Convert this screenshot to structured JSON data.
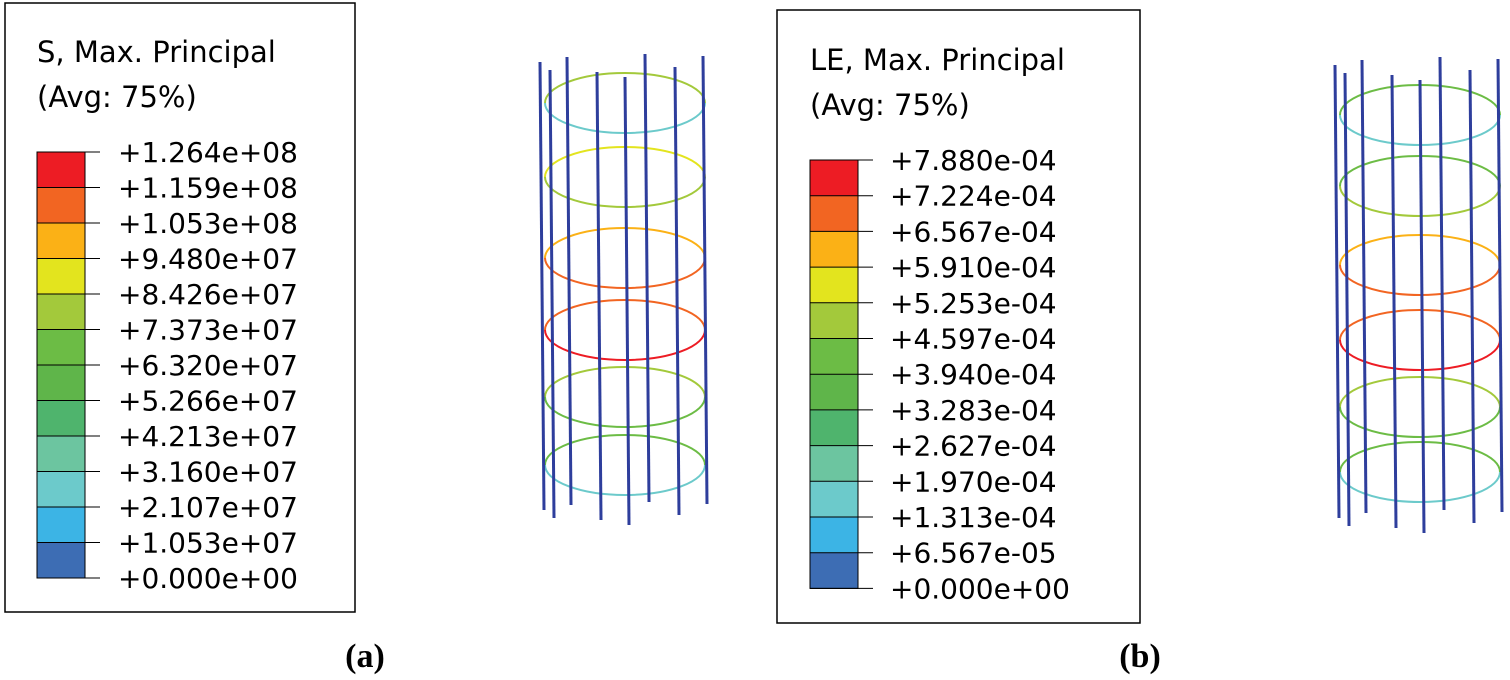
{
  "panels": [
    {
      "legend": {
        "title": "S, Max. Principal",
        "subtitle": "(Avg: 75%)",
        "labels": [
          "+1.264e+08",
          "+1.159e+08",
          "+1.053e+08",
          "+9.480e+07",
          "+8.426e+07",
          "+7.373e+07",
          "+6.320e+07",
          "+5.266e+07",
          "+4.213e+07",
          "+3.160e+07",
          "+2.107e+07",
          "+1.053e+07",
          "+0.000e+00"
        ],
        "band_colors": [
          "#ed1c24",
          "#f26522",
          "#fbb116",
          "#e3e41e",
          "#a3c93b",
          "#6cbc45",
          "#5fb54a",
          "#4fb46d",
          "#6cc5a0",
          "#6ccacb",
          "#3cb4e5",
          "#3d6db4",
          "#3a53a4"
        ]
      },
      "label": "(a)"
    },
    {
      "legend": {
        "title": "LE, Max. Principal",
        "subtitle": "(Avg: 75%)",
        "labels": [
          "+7.880e-04",
          "+7.224e-04",
          "+6.567e-04",
          "+5.910e-04",
          "+5.253e-04",
          "+4.597e-04",
          "+3.940e-04",
          "+3.283e-04",
          "+2.627e-04",
          "+1.970e-04",
          "+1.313e-04",
          "+6.567e-05",
          "+0.000e+00"
        ],
        "band_colors": [
          "#ed1c24",
          "#f26522",
          "#fbb116",
          "#e3e41e",
          "#a3c93b",
          "#6cbc45",
          "#5fb54a",
          "#4fb46d",
          "#6cc5a0",
          "#6ccacb",
          "#3cb4e5",
          "#3d6db4",
          "#3a53a4"
        ]
      },
      "label": "(b)"
    }
  ]
}
